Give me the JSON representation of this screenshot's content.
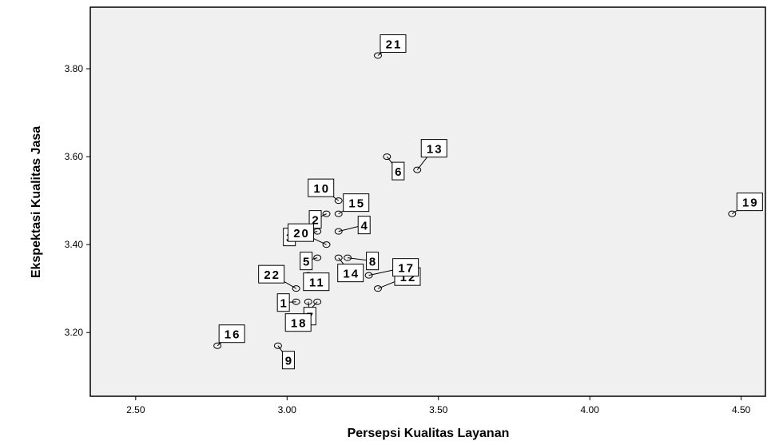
{
  "chart_data": {
    "type": "scatter",
    "xlabel": "Persepsi Kualitas Layanan",
    "ylabel": "Ekspektasi Kualitas Jasa",
    "xlim": [
      2.35,
      4.58
    ],
    "ylim": [
      3.055,
      3.94
    ],
    "xticks": [
      "2.50",
      "3.00",
      "3.50",
      "4.00",
      "4.50"
    ],
    "yticks": [
      "3.20",
      "3.40",
      "3.60",
      "3.80"
    ],
    "grid": false,
    "points": [
      {
        "label": "1",
        "x": 3.03,
        "y": 3.27
      },
      {
        "label": "2",
        "x": 3.13,
        "y": 3.47
      },
      {
        "label": "3",
        "x": 3.1,
        "y": 3.43
      },
      {
        "label": "4",
        "x": 3.17,
        "y": 3.43
      },
      {
        "label": "5",
        "x": 3.1,
        "y": 3.37
      },
      {
        "label": "6",
        "x": 3.33,
        "y": 3.6
      },
      {
        "label": "7",
        "x": 3.07,
        "y": 3.27
      },
      {
        "label": "8",
        "x": 3.2,
        "y": 3.37
      },
      {
        "label": "9",
        "x": 2.97,
        "y": 3.17
      },
      {
        "label": "10",
        "x": 3.17,
        "y": 3.5
      },
      {
        "label": "11",
        "x": 3.07,
        "y": 3.33
      },
      {
        "label": "12",
        "x": 3.3,
        "y": 3.3
      },
      {
        "label": "13",
        "x": 3.43,
        "y": 3.57
      },
      {
        "label": "14",
        "x": 3.17,
        "y": 3.37
      },
      {
        "label": "15",
        "x": 3.17,
        "y": 3.47
      },
      {
        "label": "16",
        "x": 2.77,
        "y": 3.17
      },
      {
        "label": "17",
        "x": 3.27,
        "y": 3.33
      },
      {
        "label": "18",
        "x": 3.1,
        "y": 3.27
      },
      {
        "label": "19",
        "x": 4.47,
        "y": 3.47
      },
      {
        "label": "20",
        "x": 3.13,
        "y": 3.4
      },
      {
        "label": "21",
        "x": 3.3,
        "y": 3.83
      },
      {
        "label": "22",
        "x": 3.03,
        "y": 3.3
      }
    ]
  }
}
